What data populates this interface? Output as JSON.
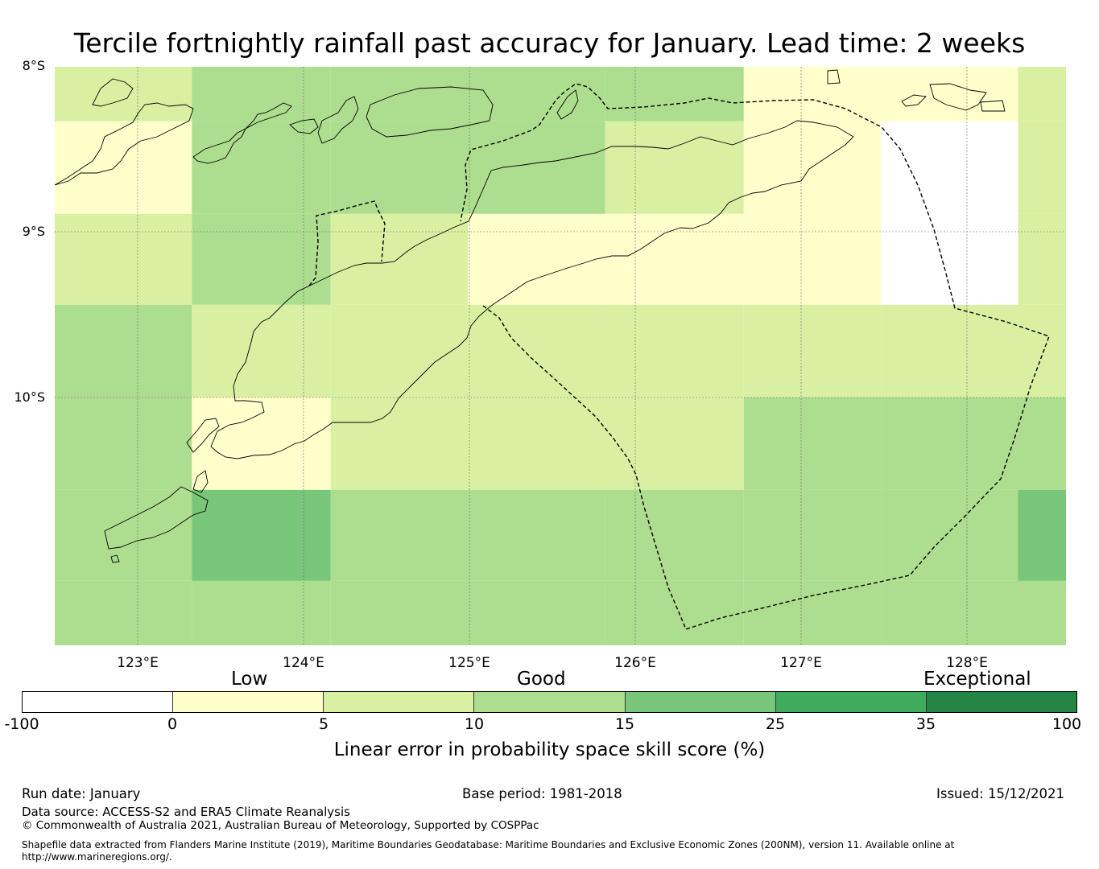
{
  "title": "Tercile fortnightly rainfall past accuracy for January. Lead time: 2 weeks",
  "map": {
    "lat_labels": [
      "8°S",
      "9°S",
      "10°S"
    ],
    "lon_labels": [
      "123°E",
      "124°E",
      "125°E",
      "126°E",
      "127°E",
      "128°E"
    ],
    "extent": {
      "lon_min": 122.5,
      "lon_max": 128.62,
      "lat_min": -11.5,
      "lat_max": -8.0
    },
    "grid_cells": {
      "lon_edges": [
        122.5,
        123.33,
        124.17,
        125.0,
        125.83,
        126.67,
        127.5,
        128.33,
        128.62
      ],
      "lat_edges": [
        -8.0,
        -8.33,
        -8.89,
        -9.44,
        -10.0,
        -10.56,
        -11.11,
        -11.5
      ],
      "categories": [
        [
          1,
          2,
          2,
          2,
          2,
          0,
          0,
          1
        ],
        [
          0,
          2,
          2,
          2,
          1,
          0,
          -1,
          1
        ],
        [
          1,
          2,
          1,
          0,
          0,
          0,
          -1,
          1
        ],
        [
          2,
          1,
          1,
          1,
          1,
          1,
          1,
          1
        ],
        [
          2,
          0,
          1,
          1,
          1,
          2,
          2,
          2
        ],
        [
          2,
          3,
          2,
          2,
          2,
          2,
          2,
          3
        ],
        [
          2,
          2,
          2,
          2,
          2,
          2,
          2,
          2
        ]
      ]
    }
  },
  "colorbar": {
    "category_labels": [
      "Low",
      "Good",
      "Exceptional"
    ],
    "ticks": [
      "-100",
      "0",
      "5",
      "10",
      "15",
      "25",
      "35",
      "100"
    ],
    "colors": [
      "#ffffff",
      "#ffffcc",
      "#d9f0a3",
      "#addd8e",
      "#78c679",
      "#41ab5d",
      "#238443"
    ],
    "label": "Linear error in probability space skill score (%)"
  },
  "footer": {
    "run_date": "Run date: January",
    "base_period": "Base period: 1981-2018",
    "issued": "Issued: 15/12/2021",
    "data_source": "Data source: ACCESS-S2 and ERA5 Climate Reanalysis",
    "copyright": "© Commonwealth of Australia 2021, Australian Bureau of Meteorology, Supported by COSPPac",
    "shapefile_note": "Shapefile data extracted from Flanders Marine Institute (2019), Maritime Boundaries Geodatabase: Maritime Boundaries and Exclusive Economic Zones (200NM), version 11. Available online at http://www.marineregions.org/."
  }
}
